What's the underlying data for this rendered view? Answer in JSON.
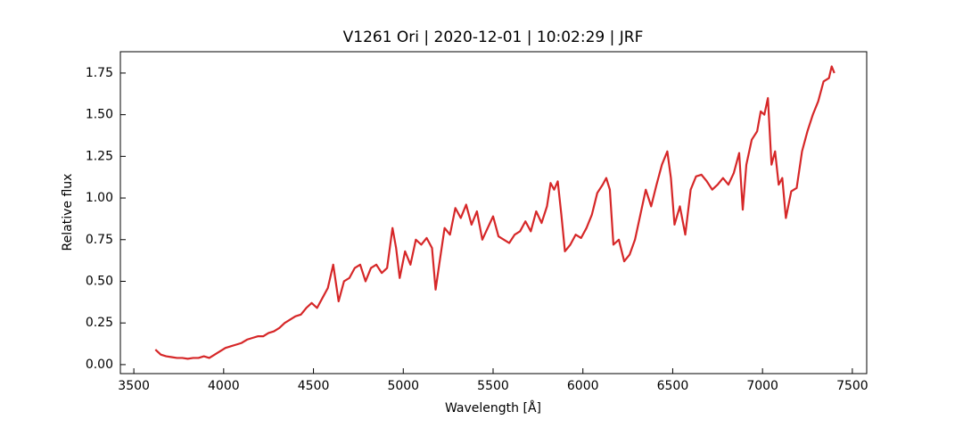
{
  "chart_data": {
    "type": "line",
    "title": "V1261 Ori | 2020-12-01 | 10:02:29 | JRF",
    "x_label": "Wavelength [Å]",
    "y_label": "Relative flux",
    "color": "#d62728",
    "xlim": [
      3425,
      7580
    ],
    "ylim": [
      -0.054,
      1.878
    ],
    "xticks": [
      3500,
      4000,
      4500,
      5000,
      5500,
      6000,
      6500,
      7000,
      7500
    ],
    "yticks": [
      {
        "value": 0,
        "label": "0.00"
      },
      {
        "value": 0.25,
        "label": "0.25"
      },
      {
        "value": 0.5,
        "label": "0.50"
      },
      {
        "value": 0.75,
        "label": "0.75"
      },
      {
        "value": 1,
        "label": "1.00"
      },
      {
        "value": 1.25,
        "label": "1.25"
      },
      {
        "value": 1.5,
        "label": "1.50"
      },
      {
        "value": 1.75,
        "label": "1.75"
      }
    ],
    "x": [
      3620,
      3650,
      3680,
      3710,
      3740,
      3770,
      3800,
      3830,
      3860,
      3890,
      3920,
      3950,
      3980,
      4010,
      4040,
      4070,
      4100,
      4130,
      4160,
      4190,
      4220,
      4250,
      4280,
      4310,
      4340,
      4370,
      4400,
      4430,
      4460,
      4490,
      4520,
      4550,
      4580,
      4610,
      4640,
      4670,
      4700,
      4730,
      4760,
      4790,
      4820,
      4850,
      4880,
      4910,
      4940,
      4960,
      4980,
      5010,
      5040,
      5070,
      5100,
      5130,
      5160,
      5180,
      5200,
      5230,
      5260,
      5290,
      5320,
      5350,
      5380,
      5410,
      5440,
      5470,
      5500,
      5530,
      5560,
      5590,
      5620,
      5650,
      5680,
      5710,
      5740,
      5770,
      5800,
      5820,
      5840,
      5860,
      5880,
      5900,
      5930,
      5960,
      5990,
      6020,
      6050,
      6080,
      6110,
      6130,
      6150,
      6170,
      6200,
      6230,
      6260,
      6290,
      6320,
      6350,
      6380,
      6410,
      6440,
      6470,
      6490,
      6510,
      6540,
      6570,
      6600,
      6630,
      6660,
      6690,
      6720,
      6750,
      6780,
      6810,
      6840,
      6870,
      6890,
      6910,
      6940,
      6970,
      6990,
      7010,
      7030,
      7050,
      7070,
      7090,
      7110,
      7130,
      7160,
      7190,
      7220,
      7250,
      7280,
      7310,
      7340,
      7370,
      7385,
      7400
    ],
    "values": [
      0.09,
      0.06,
      0.05,
      0.045,
      0.04,
      0.04,
      0.035,
      0.04,
      0.04,
      0.05,
      0.04,
      0.06,
      0.08,
      0.1,
      0.11,
      0.12,
      0.13,
      0.15,
      0.16,
      0.17,
      0.17,
      0.19,
      0.2,
      0.22,
      0.25,
      0.27,
      0.29,
      0.3,
      0.34,
      0.37,
      0.34,
      0.4,
      0.46,
      0.6,
      0.38,
      0.5,
      0.52,
      0.58,
      0.6,
      0.5,
      0.58,
      0.6,
      0.55,
      0.58,
      0.82,
      0.7,
      0.52,
      0.68,
      0.6,
      0.75,
      0.72,
      0.76,
      0.7,
      0.45,
      0.6,
      0.82,
      0.78,
      0.94,
      0.88,
      0.96,
      0.84,
      0.92,
      0.75,
      0.82,
      0.89,
      0.77,
      0.75,
      0.73,
      0.78,
      0.8,
      0.86,
      0.8,
      0.92,
      0.85,
      0.95,
      1.09,
      1.05,
      1.1,
      0.9,
      0.68,
      0.72,
      0.78,
      0.76,
      0.82,
      0.9,
      1.03,
      1.08,
      1.12,
      1.05,
      0.72,
      0.75,
      0.62,
      0.66,
      0.75,
      0.9,
      1.05,
      0.95,
      1.08,
      1.2,
      1.28,
      1.12,
      0.84,
      0.95,
      0.78,
      1.05,
      1.13,
      1.14,
      1.1,
      1.05,
      1.08,
      1.12,
      1.08,
      1.15,
      1.27,
      0.93,
      1.2,
      1.35,
      1.4,
      1.52,
      1.5,
      1.6,
      1.2,
      1.28,
      1.08,
      1.12,
      0.88,
      1.04,
      1.06,
      1.28,
      1.4,
      1.5,
      1.58,
      1.7,
      1.72,
      1.79,
      1.75
    ]
  }
}
